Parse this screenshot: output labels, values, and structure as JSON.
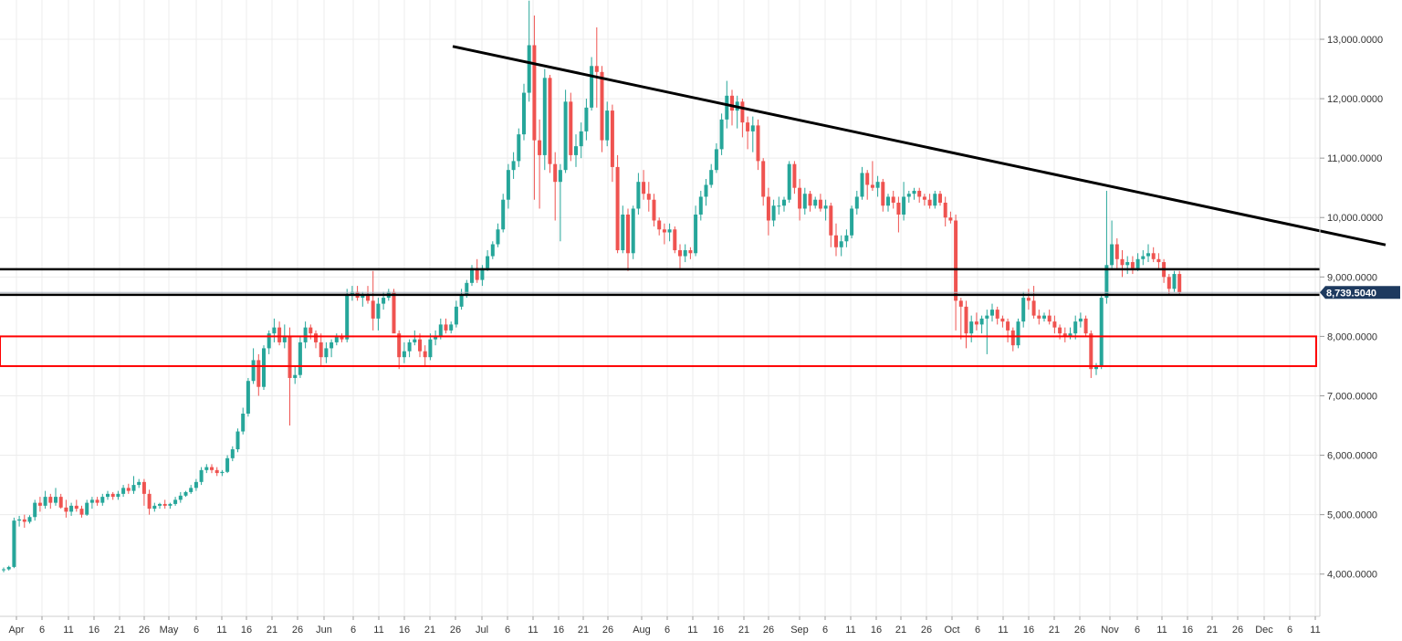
{
  "chart_data": {
    "type": "candlestick",
    "title": "",
    "xlabel": "",
    "ylabel": "",
    "x_ticks": [
      "Apr",
      "6",
      "11",
      "16",
      "21",
      "26",
      "May",
      "6",
      "11",
      "16",
      "21",
      "26",
      "Jun",
      "6",
      "11",
      "16",
      "21",
      "26",
      "Jul",
      "6",
      "11",
      "16",
      "21",
      "26",
      "Aug",
      "6",
      "11",
      "16",
      "21",
      "26",
      "Sep",
      "6",
      "11",
      "16",
      "21",
      "26",
      "Oct",
      "6",
      "11",
      "16",
      "21",
      "26",
      "Nov",
      "6",
      "11",
      "16",
      "21",
      "26",
      "Dec",
      "6",
      "11"
    ],
    "y_ticks": [
      "13,000.0000",
      "12,000.0000",
      "11,000.0000",
      "10,000.0000",
      "9,000.0000",
      "8,000.0000",
      "7,000.0000",
      "6,000.0000",
      "5,000.0000",
      "4,000.0000"
    ],
    "ylim": [
      3300,
      13700
    ],
    "grid": true,
    "colors": {
      "up": "#26a69a",
      "down": "#ef5350",
      "trendline": "#000000",
      "zone": "#ff0000",
      "price_tag": "#1e3a5f"
    },
    "current_price": {
      "value": 8739.504,
      "label": "8,739.5040"
    },
    "candles": [
      [
        4070,
        4110,
        4030,
        4080
      ],
      [
        4080,
        4140,
        4060,
        4120
      ],
      [
        4120,
        4950,
        4100,
        4900
      ],
      [
        4900,
        4980,
        4800,
        4920
      ],
      [
        4920,
        5000,
        4780,
        4880
      ],
      [
        4880,
        4990,
        4850,
        4960
      ],
      [
        4960,
        5250,
        4900,
        5200
      ],
      [
        5200,
        5300,
        5050,
        5150
      ],
      [
        5150,
        5400,
        5100,
        5300
      ],
      [
        5300,
        5350,
        5100,
        5200
      ],
      [
        5200,
        5450,
        5150,
        5300
      ],
      [
        5300,
        5350,
        5100,
        5120
      ],
      [
        5120,
        5250,
        4950,
        5050
      ],
      [
        5050,
        5200,
        4980,
        5150
      ],
      [
        5150,
        5250,
        5050,
        5100
      ],
      [
        5100,
        5150,
        4950,
        5000
      ],
      [
        5000,
        5250,
        4980,
        5200
      ],
      [
        5200,
        5300,
        5100,
        5250
      ],
      [
        5250,
        5300,
        5150,
        5200
      ],
      [
        5200,
        5350,
        5150,
        5300
      ],
      [
        5300,
        5400,
        5250,
        5350
      ],
      [
        5350,
        5380,
        5250,
        5300
      ],
      [
        5300,
        5400,
        5250,
        5350
      ],
      [
        5350,
        5500,
        5300,
        5450
      ],
      [
        5450,
        5520,
        5350,
        5400
      ],
      [
        5400,
        5650,
        5350,
        5500
      ],
      [
        5500,
        5600,
        5450,
        5550
      ],
      [
        5550,
        5600,
        5150,
        5350
      ],
      [
        5350,
        5420,
        5000,
        5100
      ],
      [
        5100,
        5200,
        5050,
        5150
      ],
      [
        5150,
        5200,
        5100,
        5180
      ],
      [
        5180,
        5250,
        5100,
        5150
      ],
      [
        5150,
        5200,
        5100,
        5180
      ],
      [
        5180,
        5300,
        5150,
        5250
      ],
      [
        5250,
        5380,
        5200,
        5320
      ],
      [
        5320,
        5400,
        5300,
        5380
      ],
      [
        5380,
        5500,
        5350,
        5450
      ],
      [
        5450,
        5600,
        5400,
        5550
      ],
      [
        5550,
        5800,
        5500,
        5750
      ],
      [
        5750,
        5850,
        5700,
        5800
      ],
      [
        5800,
        5850,
        5700,
        5750
      ],
      [
        5750,
        5800,
        5650,
        5700
      ],
      [
        5700,
        5750,
        5650,
        5720
      ],
      [
        5720,
        6000,
        5700,
        5950
      ],
      [
        5950,
        6150,
        5900,
        6100
      ],
      [
        6100,
        6450,
        6050,
        6400
      ],
      [
        6400,
        6800,
        6350,
        6700
      ],
      [
        6700,
        7300,
        6650,
        7250
      ],
      [
        7250,
        7800,
        7200,
        7600
      ],
      [
        7600,
        7700,
        7000,
        7150
      ],
      [
        7150,
        7850,
        7100,
        7800
      ],
      [
        7800,
        8100,
        7700,
        8050
      ],
      [
        8050,
        8300,
        7900,
        8150
      ],
      [
        8150,
        8250,
        7850,
        7900
      ],
      [
        7900,
        8200,
        7800,
        8000
      ],
      [
        8000,
        8150,
        6500,
        7300
      ],
      [
        7300,
        7500,
        7200,
        7350
      ],
      [
        7350,
        8000,
        7300,
        7900
      ],
      [
        7900,
        8250,
        7800,
        8150
      ],
      [
        8150,
        8200,
        7950,
        8050
      ],
      [
        8050,
        8100,
        7800,
        7900
      ],
      [
        7900,
        8050,
        7500,
        7650
      ],
      [
        7650,
        7900,
        7550,
        7800
      ],
      [
        7800,
        7950,
        7650,
        7900
      ],
      [
        7900,
        8050,
        7850,
        8000
      ],
      [
        8000,
        8050,
        7900,
        7950
      ],
      [
        7950,
        8800,
        7900,
        8700
      ],
      [
        8700,
        8850,
        8600,
        8750
      ],
      [
        8750,
        8850,
        8600,
        8650
      ],
      [
        8650,
        8750,
        8500,
        8700
      ],
      [
        8700,
        8850,
        8550,
        8600
      ],
      [
        8600,
        9100,
        8100,
        8300
      ],
      [
        8300,
        8650,
        8100,
        8550
      ],
      [
        8550,
        8750,
        8450,
        8650
      ],
      [
        8650,
        8800,
        8600,
        8750
      ],
      [
        8750,
        8800,
        8150,
        8050
      ],
      [
        8050,
        8100,
        7450,
        7650
      ],
      [
        7650,
        7900,
        7550,
        7750
      ],
      [
        7750,
        7950,
        7650,
        7900
      ],
      [
        7900,
        8100,
        7850,
        7950
      ],
      [
        7950,
        8050,
        7650,
        7750
      ],
      [
        7750,
        7850,
        7500,
        7650
      ],
      [
        7650,
        8050,
        7600,
        7950
      ],
      [
        7950,
        8100,
        7850,
        8000
      ],
      [
        8000,
        8300,
        7950,
        8200
      ],
      [
        8200,
        8300,
        8050,
        8100
      ],
      [
        8100,
        8250,
        8050,
        8200
      ],
      [
        8200,
        8600,
        8150,
        8500
      ],
      [
        8500,
        8800,
        8450,
        8700
      ],
      [
        8700,
        8950,
        8650,
        8900
      ],
      [
        8900,
        9200,
        8850,
        9150
      ],
      [
        9150,
        9300,
        8900,
        8950
      ],
      [
        8950,
        9200,
        8850,
        9150
      ],
      [
        9150,
        9450,
        9100,
        9350
      ],
      [
        9350,
        9600,
        9300,
        9550
      ],
      [
        9550,
        9900,
        9500,
        9800
      ],
      [
        9800,
        10400,
        9750,
        10300
      ],
      [
        10300,
        10900,
        10150,
        10800
      ],
      [
        10800,
        11100,
        10650,
        10950
      ],
      [
        10950,
        11500,
        10850,
        11400
      ],
      [
        11400,
        12250,
        11300,
        12100
      ],
      [
        12100,
        13650,
        11950,
        12900
      ],
      [
        12900,
        13400,
        10300,
        11300
      ],
      [
        11300,
        11650,
        10150,
        11050
      ],
      [
        11050,
        12500,
        10800,
        12350
      ],
      [
        12350,
        12400,
        10750,
        10900
      ],
      [
        10900,
        11100,
        9950,
        10600
      ],
      [
        10600,
        10900,
        9600,
        10800
      ],
      [
        10800,
        12150,
        10750,
        11950
      ],
      [
        11950,
        12100,
        10950,
        11050
      ],
      [
        11050,
        11400,
        10850,
        11200
      ],
      [
        11200,
        11600,
        11000,
        11450
      ],
      [
        11450,
        12000,
        11300,
        11850
      ],
      [
        11850,
        12700,
        11800,
        12550
      ],
      [
        12550,
        13200,
        11850,
        12450
      ],
      [
        12450,
        12550,
        11100,
        11300
      ],
      [
        11300,
        11950,
        11200,
        11800
      ],
      [
        11800,
        11900,
        10600,
        10850
      ],
      [
        10850,
        11050,
        9400,
        9450
      ],
      [
        9450,
        10200,
        9400,
        10050
      ],
      [
        10050,
        10150,
        9100,
        9400
      ],
      [
        9400,
        10200,
        9300,
        10150
      ],
      [
        10150,
        10750,
        10050,
        10600
      ],
      [
        10600,
        10800,
        10300,
        10400
      ],
      [
        10400,
        10600,
        10100,
        10300
      ],
      [
        10300,
        10400,
        9850,
        9950
      ],
      [
        9950,
        10000,
        9700,
        9800
      ],
      [
        9800,
        9900,
        9550,
        9750
      ],
      [
        9750,
        9900,
        9600,
        9800
      ],
      [
        9800,
        9850,
        9400,
        9450
      ],
      [
        9450,
        9550,
        9150,
        9350
      ],
      [
        9350,
        9550,
        9250,
        9450
      ],
      [
        9450,
        9500,
        9300,
        9400
      ],
      [
        9400,
        10200,
        9350,
        10050
      ],
      [
        10050,
        10450,
        9950,
        10350
      ],
      [
        10350,
        10650,
        10200,
        10550
      ],
      [
        10550,
        10900,
        10500,
        10800
      ],
      [
        10800,
        11250,
        10750,
        11150
      ],
      [
        11150,
        11750,
        11050,
        11650
      ],
      [
        11650,
        12300,
        11500,
        12050
      ],
      [
        12050,
        12150,
        11550,
        11800
      ],
      [
        11800,
        12050,
        11500,
        11950
      ],
      [
        11950,
        12000,
        11350,
        11600
      ],
      [
        11600,
        11700,
        11150,
        11450
      ],
      [
        11450,
        11700,
        11100,
        11550
      ],
      [
        11550,
        11650,
        10800,
        10950
      ],
      [
        10950,
        11000,
        10200,
        10350
      ],
      [
        10350,
        10500,
        9700,
        9950
      ],
      [
        9950,
        10300,
        9850,
        10200
      ],
      [
        10200,
        10350,
        10050,
        10200
      ],
      [
        10200,
        10350,
        10100,
        10300
      ],
      [
        10300,
        10950,
        10250,
        10900
      ],
      [
        10900,
        10950,
        10400,
        10500
      ],
      [
        10500,
        10650,
        9950,
        10150
      ],
      [
        10150,
        10500,
        10050,
        10400
      ],
      [
        10400,
        10450,
        10100,
        10200
      ],
      [
        10200,
        10350,
        10150,
        10300
      ],
      [
        10300,
        10400,
        10100,
        10150
      ],
      [
        10150,
        10300,
        9950,
        10200
      ],
      [
        10200,
        10250,
        9500,
        9700
      ],
      [
        9700,
        9900,
        9350,
        9500
      ],
      [
        9500,
        9700,
        9350,
        9600
      ],
      [
        9600,
        9800,
        9500,
        9700
      ],
      [
        9700,
        10200,
        9650,
        10150
      ],
      [
        10150,
        10450,
        10050,
        10350
      ],
      [
        10350,
        10850,
        10300,
        10750
      ],
      [
        10750,
        10800,
        10300,
        10550
      ],
      [
        10550,
        10950,
        10450,
        10500
      ],
      [
        10500,
        10700,
        10350,
        10600
      ],
      [
        10600,
        10650,
        10100,
        10200
      ],
      [
        10200,
        10400,
        10100,
        10350
      ],
      [
        10350,
        10450,
        10150,
        10250
      ],
      [
        10250,
        10350,
        9750,
        10050
      ],
      [
        10050,
        10600,
        9950,
        10350
      ],
      [
        10350,
        10450,
        10250,
        10400
      ],
      [
        10400,
        10500,
        10300,
        10450
      ],
      [
        10450,
        10500,
        10250,
        10350
      ],
      [
        10350,
        10400,
        10200,
        10300
      ],
      [
        10300,
        10400,
        10150,
        10200
      ],
      [
        10200,
        10450,
        10150,
        10400
      ],
      [
        10400,
        10450,
        10200,
        10250
      ],
      [
        10250,
        10350,
        9850,
        10000
      ],
      [
        10000,
        10100,
        9900,
        9950
      ],
      [
        9950,
        10050,
        8100,
        8600
      ],
      [
        8600,
        8650,
        7950,
        8500
      ],
      [
        8500,
        8600,
        7800,
        8050
      ],
      [
        8050,
        8350,
        7900,
        8250
      ],
      [
        8250,
        8400,
        8100,
        8200
      ],
      [
        8200,
        8350,
        8050,
        8300
      ],
      [
        8300,
        8450,
        7700,
        8350
      ],
      [
        8350,
        8550,
        8250,
        8450
      ],
      [
        8450,
        8500,
        8200,
        8300
      ],
      [
        8300,
        8350,
        8150,
        8250
      ],
      [
        8250,
        8300,
        7900,
        8100
      ],
      [
        8100,
        8150,
        7750,
        7850
      ],
      [
        7850,
        8300,
        7800,
        8250
      ],
      [
        8250,
        8750,
        8150,
        8650
      ],
      [
        8650,
        8800,
        8450,
        8600
      ],
      [
        8600,
        8850,
        8300,
        8350
      ],
      [
        8350,
        8450,
        8200,
        8300
      ],
      [
        8300,
        8400,
        8250,
        8350
      ],
      [
        8350,
        8450,
        8200,
        8250
      ],
      [
        8250,
        8350,
        8050,
        8150
      ],
      [
        8150,
        8200,
        7950,
        8050
      ],
      [
        8050,
        8150,
        7900,
        8000
      ],
      [
        8000,
        8150,
        7950,
        8050
      ],
      [
        8050,
        8350,
        7950,
        8250
      ],
      [
        8250,
        8400,
        8150,
        8300
      ],
      [
        8300,
        8350,
        8000,
        8050
      ],
      [
        8050,
        8100,
        7300,
        7450
      ],
      [
        7450,
        7550,
        7350,
        7500
      ],
      [
        7500,
        8700,
        7450,
        8650
      ],
      [
        8650,
        10450,
        8550,
        9200
      ],
      [
        9200,
        9950,
        9150,
        9550
      ],
      [
        9550,
        9650,
        9150,
        9300
      ],
      [
        9300,
        9450,
        9000,
        9200
      ],
      [
        9200,
        9350,
        9050,
        9250
      ],
      [
        9250,
        9350,
        9050,
        9150
      ],
      [
        9150,
        9400,
        9100,
        9300
      ],
      [
        9300,
        9450,
        9200,
        9350
      ],
      [
        9350,
        9550,
        9250,
        9400
      ],
      [
        9400,
        9500,
        9250,
        9300
      ],
      [
        9300,
        9400,
        9150,
        9250
      ],
      [
        9250,
        9300,
        8900,
        9000
      ],
      [
        9000,
        9050,
        8700,
        8800
      ],
      [
        8800,
        9100,
        8750,
        9050
      ],
      [
        9050,
        9100,
        8700,
        8740
      ]
    ]
  }
}
